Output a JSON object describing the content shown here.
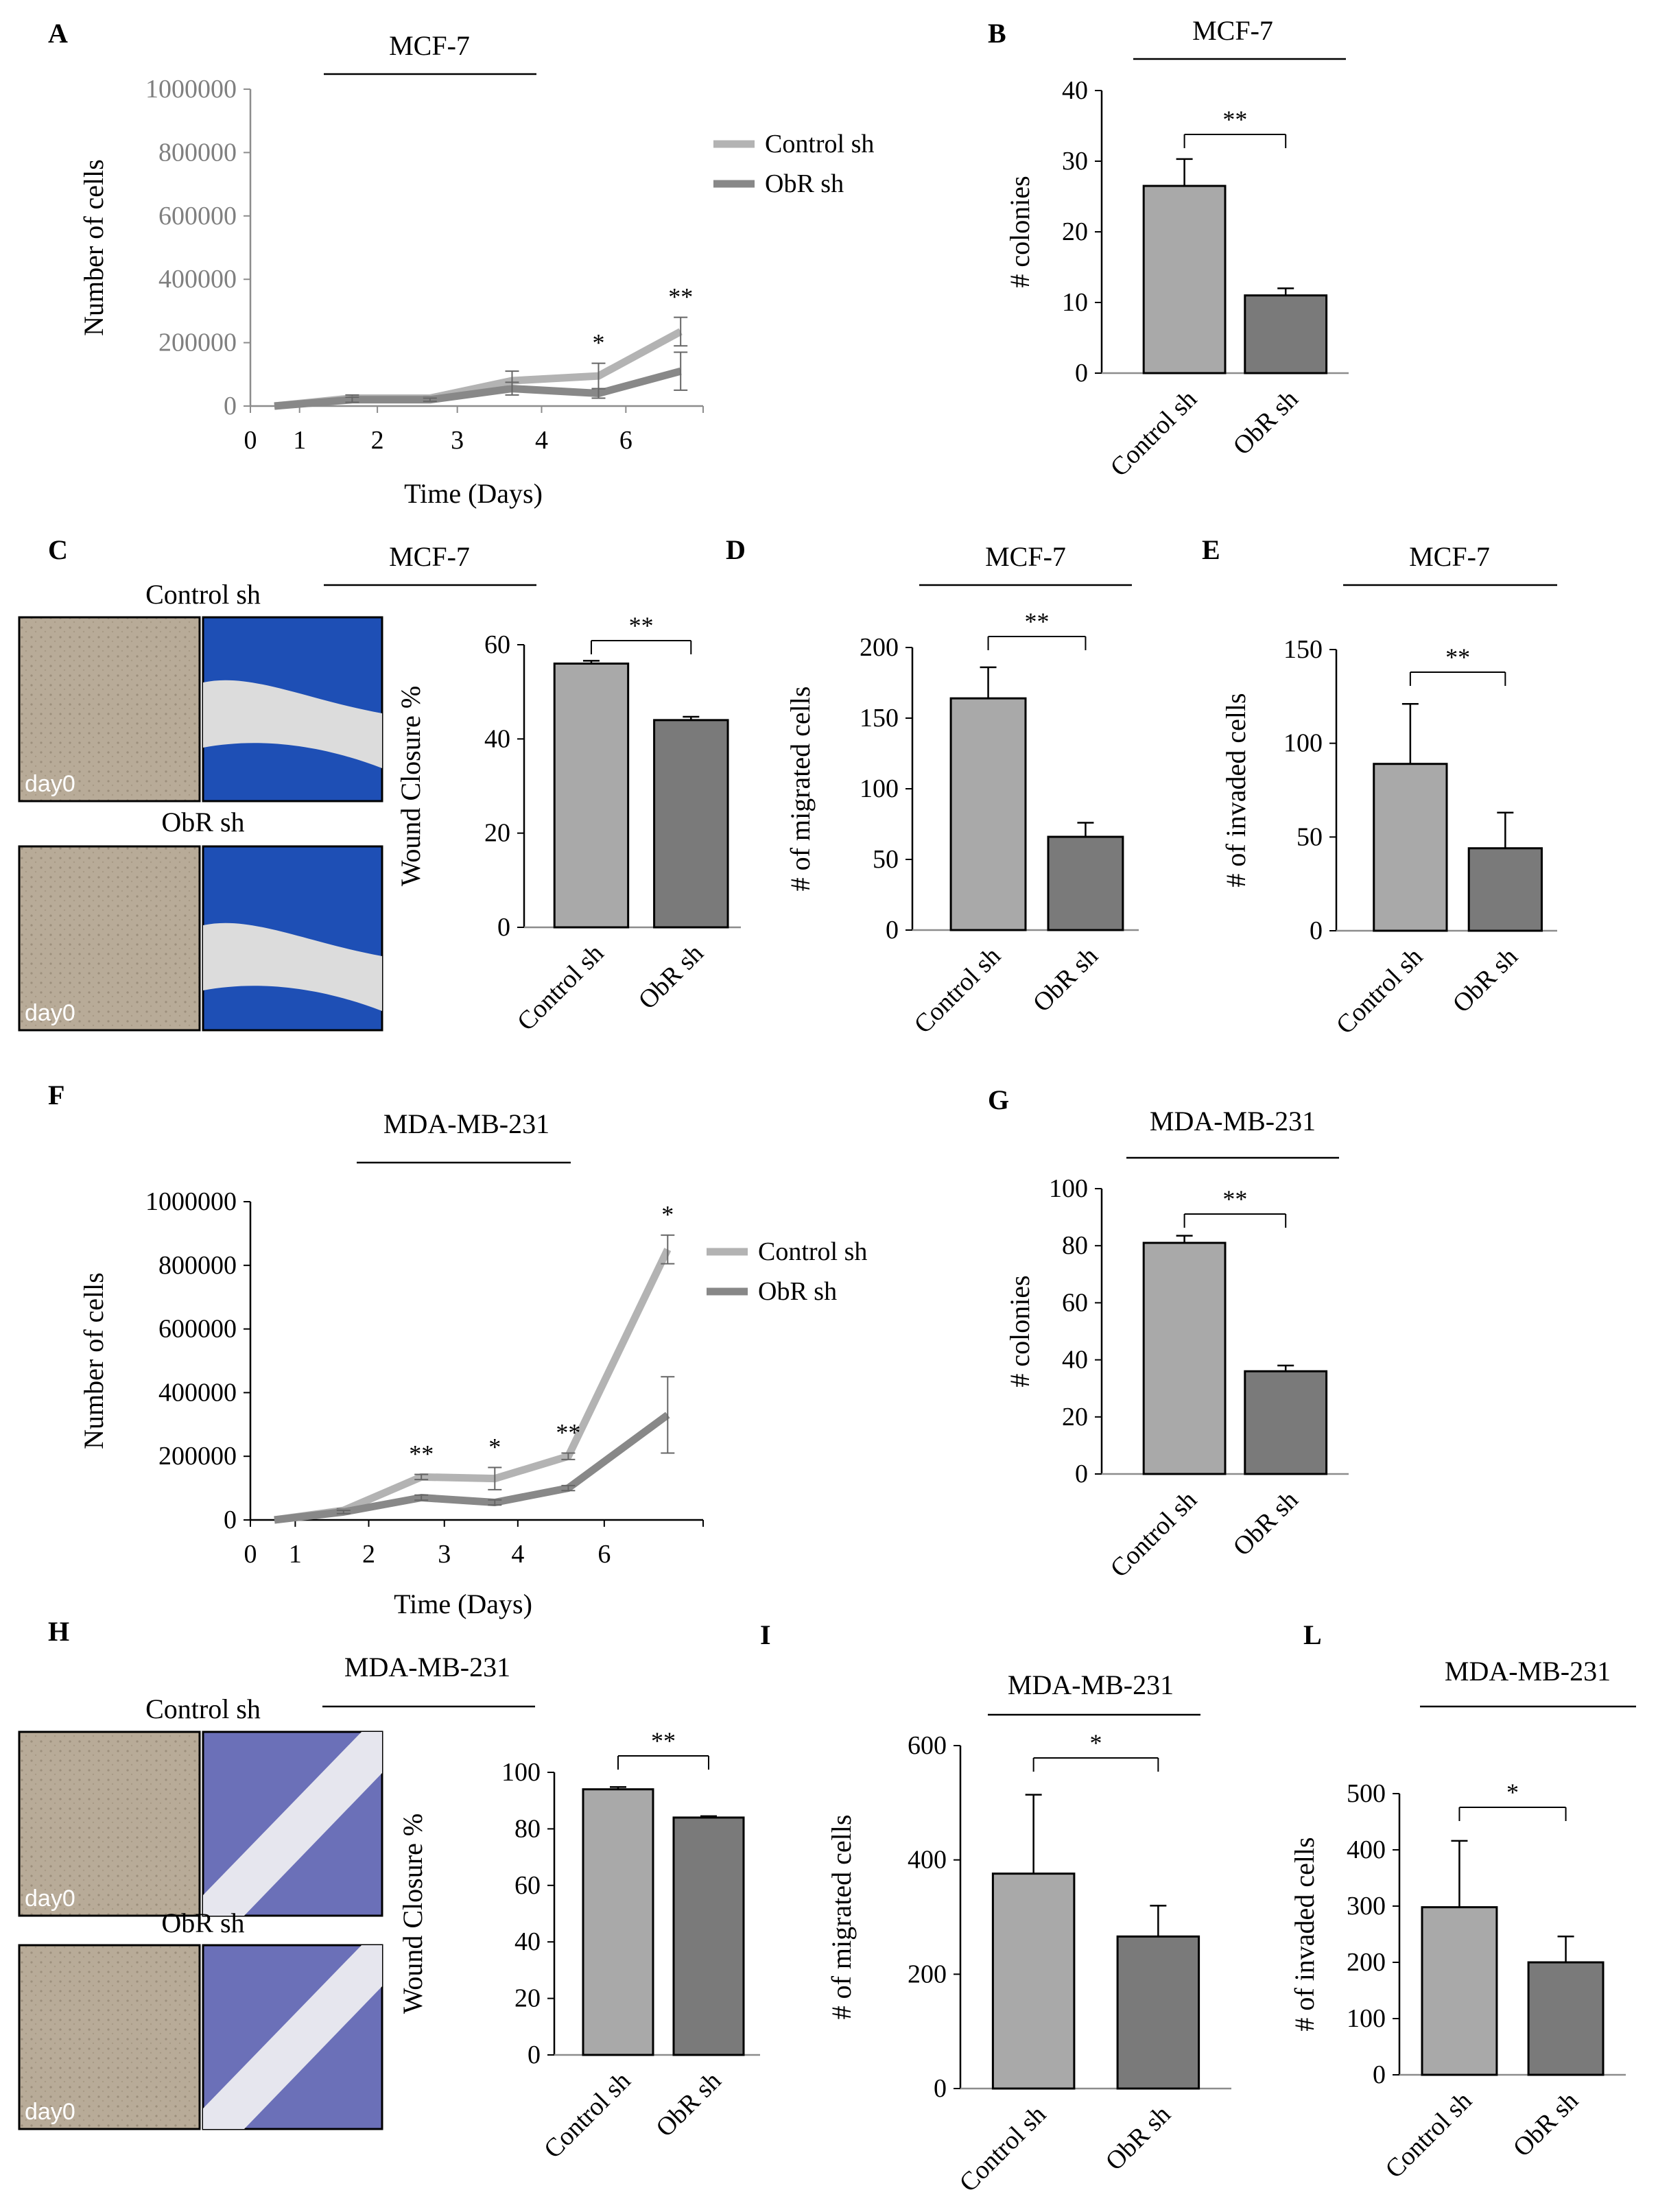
{
  "figure": {
    "colors": {
      "control": "#a9a9a9",
      "obr": "#7a7a7a",
      "control_line": "#b3b3b3",
      "obr_line": "#888888",
      "axis": "#000000"
    },
    "photo_labels": {
      "day0": "day0"
    },
    "photo_icons": [
      "micrograph-day0-icon",
      "micrograph-stained-icon"
    ]
  },
  "chart_data": [
    {
      "id": "A",
      "type": "line",
      "panel_label": "A",
      "title": "MCF-7",
      "categories": [
        "0",
        "1",
        "2",
        "3",
        "4",
        "6"
      ],
      "xlabel": "Time (Days)",
      "ylabel": "Number of cells",
      "ylim": [
        0,
        1000000
      ],
      "yticks": [
        "0",
        "200000",
        "400000",
        "600000",
        "800000",
        "1000000"
      ],
      "series": [
        {
          "name": "Control sh",
          "values": [
            0,
            25000,
            25000,
            80000,
            95000,
            235000
          ],
          "errors": [
            0,
            10000,
            5000,
            30000,
            40000,
            45000
          ]
        },
        {
          "name": "ObR sh",
          "values": [
            0,
            20000,
            20000,
            55000,
            40000,
            110000
          ],
          "errors": [
            0,
            8000,
            5000,
            20000,
            15000,
            60000
          ]
        }
      ],
      "annotations": [
        {
          "x": "4",
          "text": "*"
        },
        {
          "x": "6",
          "text": "**"
        }
      ]
    },
    {
      "id": "B",
      "type": "bar",
      "panel_label": "B",
      "title": "MCF-7",
      "categories": [
        "Control sh",
        "ObR sh"
      ],
      "values": [
        26.5,
        11
      ],
      "errors": [
        3.8,
        1
      ],
      "ylabel": "# colonies",
      "ylim": [
        0,
        40
      ],
      "yticks": [
        "0",
        "10",
        "20",
        "30",
        "40"
      ],
      "significance": "**"
    },
    {
      "id": "C",
      "type": "bar",
      "panel_label": "C",
      "title": "MCF-7",
      "photo_titles": [
        "Control sh",
        "ObR sh"
      ],
      "categories": [
        "Control sh",
        "ObR sh"
      ],
      "values": [
        56,
        44
      ],
      "errors": [
        0.6,
        0.7
      ],
      "ylabel": "Wound Closure %",
      "ylim": [
        0,
        60
      ],
      "yticks": [
        "0",
        "20",
        "40",
        "60"
      ],
      "significance": "**"
    },
    {
      "id": "D",
      "type": "bar",
      "panel_label": "D",
      "title": "MCF-7",
      "categories": [
        "Control sh",
        "ObR sh"
      ],
      "values": [
        164,
        66
      ],
      "errors": [
        22,
        10
      ],
      "ylabel": "# of migrated cells",
      "ylim": [
        0,
        200
      ],
      "yticks": [
        "0",
        "50",
        "100",
        "150",
        "200"
      ],
      "significance": "**"
    },
    {
      "id": "E",
      "type": "bar",
      "panel_label": "E",
      "title": "MCF-7",
      "categories": [
        "Control sh",
        "ObR sh"
      ],
      "values": [
        89,
        44
      ],
      "errors": [
        32,
        19
      ],
      "ylabel": "# of invaded cells",
      "ylim": [
        0,
        150
      ],
      "yticks": [
        "0",
        "50",
        "100",
        "150"
      ],
      "significance": "**"
    },
    {
      "id": "F",
      "type": "line",
      "panel_label": "F",
      "title": "MDA-MB-231",
      "categories": [
        "0",
        "1",
        "2",
        "3",
        "4",
        "6"
      ],
      "xlabel": "Time (Days)",
      "ylabel": "Number of cells",
      "ylim": [
        0,
        1000000
      ],
      "yticks": [
        "0",
        "200000",
        "400000",
        "600000",
        "800000",
        "1000000"
      ],
      "series": [
        {
          "name": "Control sh",
          "values": [
            0,
            30000,
            135000,
            130000,
            200000,
            850000
          ],
          "errors": [
            0,
            5000,
            8000,
            35000,
            10000,
            45000
          ]
        },
        {
          "name": "ObR  sh",
          "values": [
            0,
            25000,
            70000,
            55000,
            100000,
            330000
          ],
          "errors": [
            0,
            5000,
            8000,
            8000,
            8000,
            120000
          ]
        }
      ],
      "annotations": [
        {
          "x": "2",
          "text": "**"
        },
        {
          "x": "3",
          "text": "*"
        },
        {
          "x": "4",
          "text": "**"
        },
        {
          "x": "6",
          "text": "*"
        }
      ]
    },
    {
      "id": "G",
      "type": "bar",
      "panel_label": "G",
      "title": "MDA-MB-231",
      "categories": [
        "Control sh",
        "ObR sh"
      ],
      "values": [
        81,
        36
      ],
      "errors": [
        2.5,
        2
      ],
      "ylabel": "# colonies",
      "ylim": [
        0,
        100
      ],
      "yticks": [
        "0",
        "20",
        "40",
        "60",
        "80",
        "100"
      ],
      "significance": "**"
    },
    {
      "id": "H",
      "type": "bar",
      "panel_label": "H",
      "title": "MDA-MB-231",
      "photo_titles": [
        "Control sh",
        "ObR sh"
      ],
      "categories": [
        "Control sh",
        "ObR sh"
      ],
      "values": [
        94,
        84
      ],
      "errors": [
        0.8,
        0.5
      ],
      "ylabel": "Wound Closure %",
      "ylim": [
        0,
        100
      ],
      "yticks": [
        "0",
        "20",
        "40",
        "60",
        "80",
        "100"
      ],
      "significance": "**"
    },
    {
      "id": "I",
      "type": "bar",
      "panel_label": "I",
      "title": "MDA-MB-231",
      "categories": [
        "Control sh",
        "ObR sh"
      ],
      "values": [
        376,
        266
      ],
      "errors": [
        138,
        54
      ],
      "ylabel": "# of migrated cells",
      "ylim": [
        0,
        600
      ],
      "yticks": [
        "0",
        "200",
        "400",
        "600"
      ],
      "significance": "*"
    },
    {
      "id": "L",
      "type": "bar",
      "panel_label": "L",
      "title": "MDA-MB-231",
      "categories": [
        "Control sh",
        "ObR sh"
      ],
      "values": [
        298,
        200
      ],
      "errors": [
        118,
        46
      ],
      "ylabel": "# of invaded cells",
      "ylim": [
        0,
        500
      ],
      "yticks": [
        "0",
        "100",
        "200",
        "300",
        "400",
        "500"
      ],
      "significance": "*"
    }
  ]
}
